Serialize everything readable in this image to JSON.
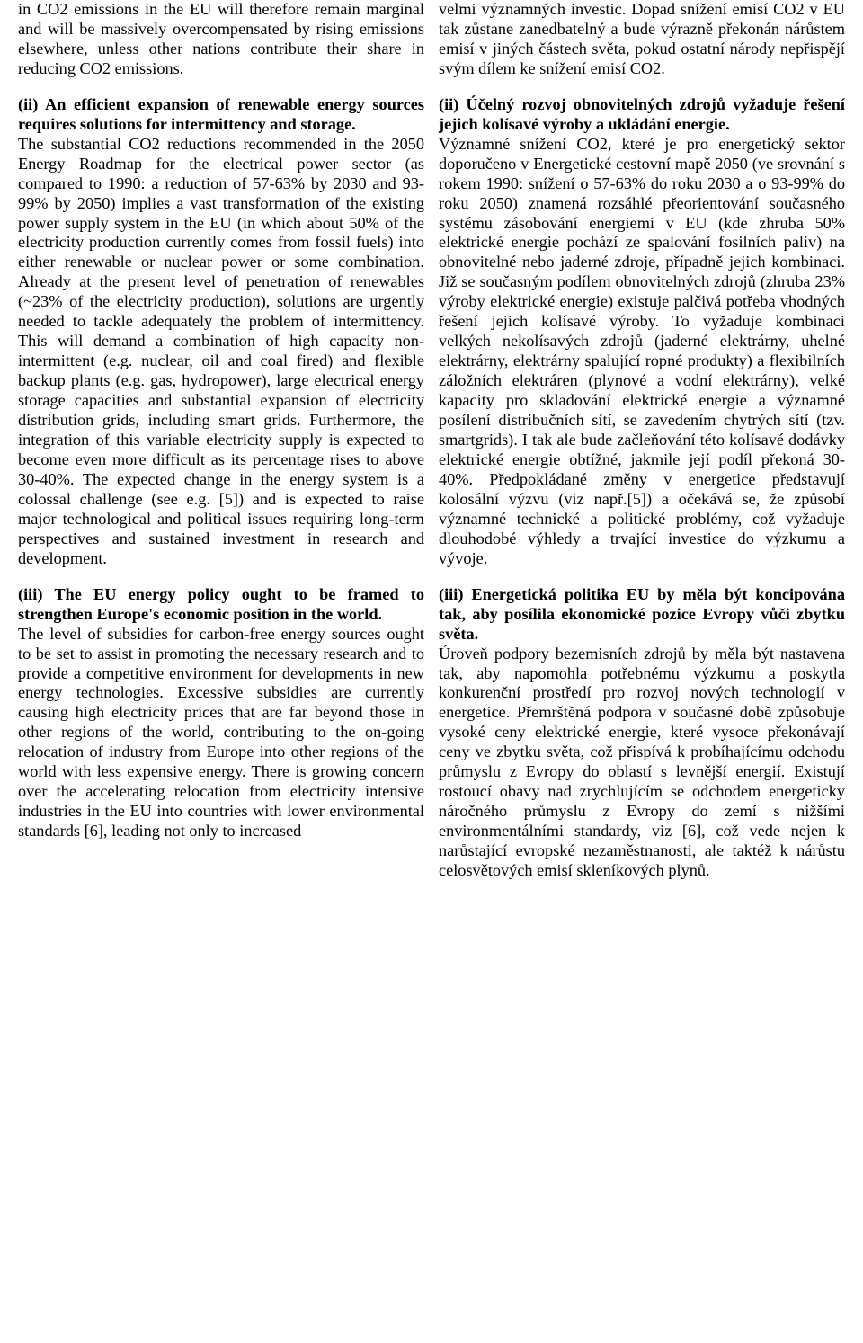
{
  "left": {
    "p1": "in CO2 emissions in the EU will therefore remain marginal and will be massively overcompensated by rising emissions elsewhere, unless other nations contribute their share in reducing CO2 emissions.",
    "h2": "(ii) An efficient expansion of renewable energy sources requires solutions for intermittency and storage.",
    "p2": "The substantial CO2 reductions recommended in the 2050 Energy Roadmap for the electrical power sector (as compared to 1990: a reduction of 57-63% by 2030 and 93-99% by 2050) implies a vast transformation of the existing power supply system in the EU (in which about 50% of the electricity production currently comes from fossil fuels) into either renewable or nuclear power or some combination. Already at the present level of penetration of renewables (~23% of the electricity production), solutions are urgently needed to tackle adequately the problem of intermittency. This will demand a combination of high capacity non-intermittent (e.g. nuclear, oil and coal fired) and flexible backup plants (e.g. gas, hydropower), large electrical energy storage capacities and substantial expansion of electricity distribution grids, including smart grids. Furthermore, the integration of this variable electricity supply is expected to become even more difficult as its percentage rises to above 30-40%. The expected change in the energy system is a colossal challenge (see e.g. [5]) and is expected to raise major technological and political issues requiring long-term perspectives and sustained investment in research and development.",
    "h3": "(iii) The EU energy policy ought to be framed to strengthen Europe's economic position in the world.",
    "p3": "The level of subsidies for carbon-free energy sources ought to be set to assist in promoting the necessary research and to provide a competitive environment for developments in new energy technologies. Excessive subsidies are currently causing high electricity prices that are far beyond those in other regions of the world, contributing to the on-going relocation of industry from Europe into other regions of the world with less expensive energy. There is growing concern over the accelerating relocation from electricity intensive industries in the EU into countries with lower environmental standards [6], leading not only to increased"
  },
  "right": {
    "p1": "velmi významných investic. Dopad snížení emisí CO2 v EU tak zůstane zanedbatelný a bude výrazně překonán nárůstem emisí v jiných částech světa, pokud ostatní národy nepřispějí svým dílem ke snížení emisí CO2.",
    "h2": "(ii) Účelný rozvoj obnovitelných zdrojů vyžaduje řešení jejich kolísavé výroby a ukládání energie.",
    "p2": "Významné snížení CO2, které je pro energetický sektor doporučeno v Energetické cestovní mapě 2050 (ve srovnání s rokem 1990: snížení o 57-63% do roku 2030 a o 93-99% do roku 2050) znamená rozsáhlé přeorientování současného systému zásobování energiemi v EU (kde zhruba 50% elektrické energie pochází ze spalování fosilních paliv) na obnovitelné nebo jaderné zdroje, případně jejich kombinaci. Již se současným podílem obnovitelných zdrojů (zhruba 23% výroby elektrické energie) existuje palčivá potřeba vhodných řešení jejich kolísavé výroby. To vyžaduje kombinaci velkých nekolísavých zdrojů (jaderné elektrárny, uhelné elektrárny, elektrárny spalující ropné produkty) a flexibilních záložních elektráren (plynové a vodní elektrárny), velké kapacity pro skladování elektrické energie a významné posílení distribučních sítí, se zavedením chytrých sítí (tzv. smartgrids). I tak ale bude začleňování této kolísavé dodávky elektrické energie obtížné, jakmile její podíl překoná 30-40%. Předpokládané změny v energetice představují kolosální výzvu (viz např.[5]) a očekává se, že způsobí významné technické a politické problémy, což vyžaduje dlouhodobé výhledy a trvající investice do výzkumu a vývoje.",
    "h3": "(iii) Energetická politika EU by měla být koncipována tak, aby posílila ekonomické pozice Evropy vůči zbytku světa.",
    "p3": "Úroveň podpory bezemisních zdrojů by měla být nastavena tak, aby napomohla potřebnému výzkumu a poskytla konkurenční prostředí pro rozvoj nových technologií v energetice. Přemrštěná podpora v současné době způsobuje vysoké ceny elektrické energie, které vysoce překonávají ceny ve zbytku světa, což přispívá k probíhajícímu odchodu průmyslu z Evropy do oblastí s levnější energií. Existují rostoucí obavy nad zrychlujícím se odchodem energeticky náročného průmyslu z Evropy do zemí s nižšími environmentálními standardy, viz [6], což vede nejen k narůstající evropské nezaměstnanosti, ale taktéž k nárůstu celosvětových emisí skleníkových plynů."
  }
}
